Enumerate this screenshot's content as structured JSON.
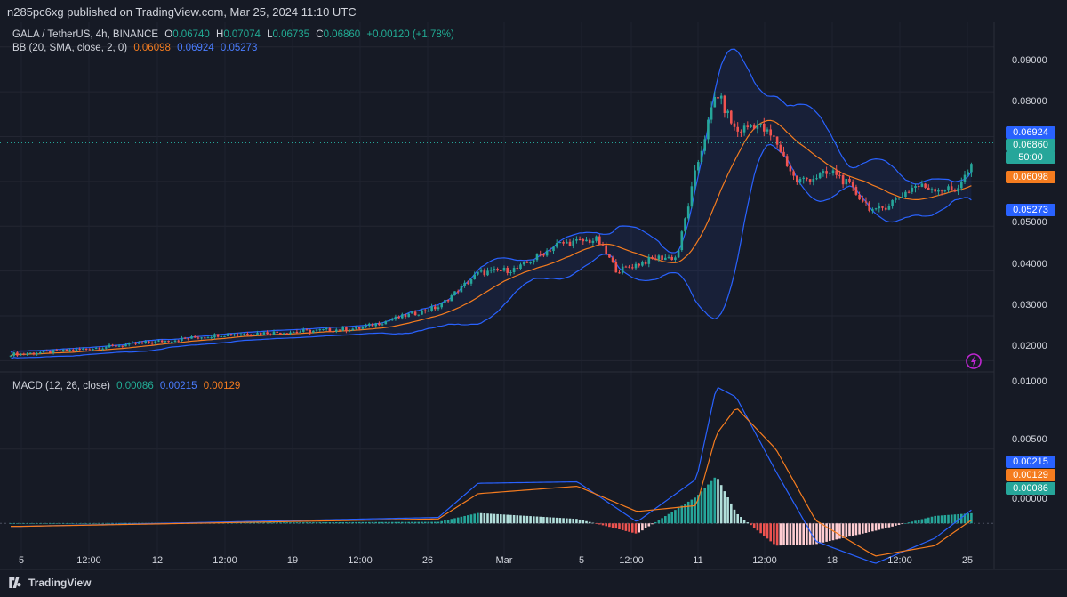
{
  "publisher": "n285pc6xg published on TradingView.com, Mar 25, 2024 11:10 UTC",
  "legend": {
    "symbol": "GALA / TetherUS, 4h, BINANCE",
    "o_label": "O",
    "o": "0.06740",
    "h_label": "H",
    "h": "0.07074",
    "l_label": "L",
    "l": "0.06735",
    "c_label": "C",
    "c": "0.06860",
    "change": "+0.00120 (+1.78%)",
    "bb_label": "BB (20, SMA, close, 2, 0)",
    "bb_basis": "0.06098",
    "bb_upper": "0.06924",
    "bb_lower": "0.05273",
    "macd_label": "MACD (12, 26, close)",
    "macd_hist": "0.00086",
    "macd_line": "0.00215",
    "macd_signal": "0.00129"
  },
  "price_tags": {
    "upper": "0.06924",
    "last": "0.06860",
    "countdown": "50:00",
    "basis": "0.06098",
    "lower": "0.05273",
    "macd_line": "0.00215",
    "macd_signal": "0.00129",
    "macd_hist": "0.00086"
  },
  "footer": {
    "brand": "TradingView"
  },
  "colors": {
    "up": "#26a69a",
    "down": "#ef5350",
    "bb_band": "#2962ff",
    "basis": "#f57c1f",
    "macd_line": "#2962ff",
    "signal": "#f57c1f",
    "hist_up": "#26a69a",
    "hist_down": "#ef5350",
    "background": "#161a25"
  },
  "chart_data": [
    {
      "type": "candlestick",
      "title": "GALA / TetherUS, 4h, BINANCE",
      "y_axis_ticks": [
        "0.09000",
        "0.08000",
        "0.05000",
        "0.04000",
        "0.03000",
        "0.02000"
      ],
      "ylim": [
        0.0175,
        0.0955
      ],
      "x_tick_labels": [
        "5",
        "12:00",
        "12",
        "12:00",
        "19",
        "12:00",
        "26",
        "Mar",
        "5",
        "12:00",
        "11",
        "12:00",
        "18",
        "12:00",
        "25"
      ],
      "approx_close_path": [
        {
          "x": "Feb 5",
          "close": 0.0215
        },
        {
          "x": "Feb 8",
          "close": 0.0225
        },
        {
          "x": "Feb 12",
          "close": 0.0243
        },
        {
          "x": "Feb 15",
          "close": 0.0258
        },
        {
          "x": "Feb 19",
          "close": 0.0265
        },
        {
          "x": "Feb 22",
          "close": 0.0272
        },
        {
          "x": "Feb 26",
          "close": 0.032
        },
        {
          "x": "Feb 28",
          "close": 0.0395
        },
        {
          "x": "Mar 1",
          "close": 0.0405
        },
        {
          "x": "Mar 3",
          "close": 0.046
        },
        {
          "x": "Mar 5",
          "close": 0.047
        },
        {
          "x": "Mar 6",
          "close": 0.04
        },
        {
          "x": "Mar 8",
          "close": 0.043
        },
        {
          "x": "Mar 9",
          "close": 0.043
        },
        {
          "x": "Mar 10",
          "close": 0.063
        },
        {
          "x": "Mar 11",
          "close": 0.08
        },
        {
          "x": "Mar 12",
          "close": 0.071
        },
        {
          "x": "Mar 13",
          "close": 0.073
        },
        {
          "x": "Mar 14",
          "close": 0.069
        },
        {
          "x": "Mar 15",
          "close": 0.06
        },
        {
          "x": "Mar 17",
          "close": 0.062
        },
        {
          "x": "Mar 19",
          "close": 0.053
        },
        {
          "x": "Mar 21",
          "close": 0.059
        },
        {
          "x": "Mar 23",
          "close": 0.058
        },
        {
          "x": "Mar 24",
          "close": 0.064
        },
        {
          "x": "Mar 25",
          "close": 0.0686
        }
      ]
    },
    {
      "type": "macd",
      "title": "MACD (12, 26, close)",
      "y_axis_ticks": [
        "0.01000",
        "0.00500",
        "0.00000"
      ],
      "ylim": [
        -0.0031,
        0.0102
      ],
      "approx_macd_path": [
        {
          "x": "Feb 5",
          "macd": -0.0002,
          "signal": -0.0002
        },
        {
          "x": "Feb 26",
          "macd": 0.0004,
          "signal": 0.0003
        },
        {
          "x": "Feb 28",
          "macd": 0.0027,
          "signal": 0.002
        },
        {
          "x": "Mar 4",
          "macd": 0.0028,
          "signal": 0.0025
        },
        {
          "x": "Mar 7",
          "macd": 0.0001,
          "signal": 0.0008
        },
        {
          "x": "Mar 10",
          "macd": 0.003,
          "signal": 0.0012
        },
        {
          "x": "Mar 11",
          "macd": 0.0092,
          "signal": 0.006
        },
        {
          "x": "Mar 12",
          "macd": 0.0085,
          "signal": 0.0078
        },
        {
          "x": "Mar 14",
          "macd": 0.0035,
          "signal": 0.005
        },
        {
          "x": "Mar 16",
          "macd": -0.0012,
          "signal": 0.0002
        },
        {
          "x": "Mar 19",
          "macd": -0.0027,
          "signal": -0.0022
        },
        {
          "x": "Mar 22",
          "macd": -0.001,
          "signal": -0.0015
        },
        {
          "x": "Mar 25",
          "macd": 0.0021,
          "signal": 0.0013
        }
      ]
    }
  ]
}
